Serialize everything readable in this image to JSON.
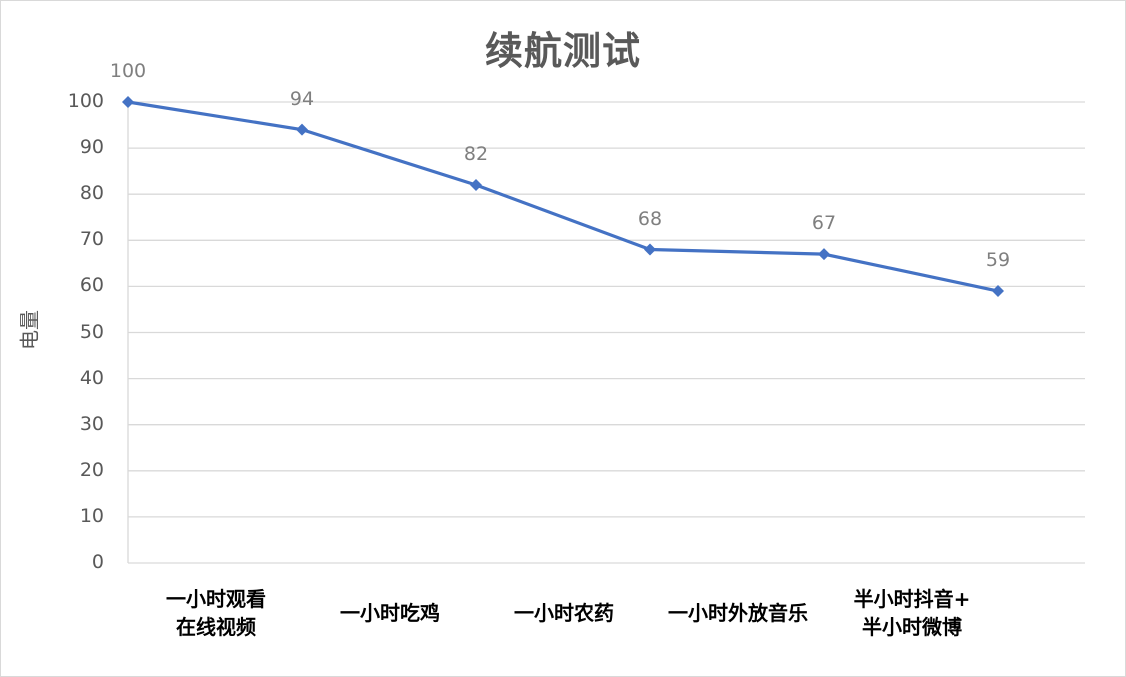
{
  "chart_data": {
    "type": "line",
    "title": "续航测试",
    "xlabel": "",
    "ylabel": "电量",
    "ylim": [
      0,
      100
    ],
    "yticks": [
      0,
      10,
      20,
      30,
      40,
      50,
      60,
      70,
      80,
      90,
      100
    ],
    "grid": true,
    "legend": "none",
    "categories": [
      "一小时观看\n在线视频",
      "一小时吃鸡",
      "一小时农药",
      "一小时外放音乐",
      "半小时抖音+\n半小时微博"
    ],
    "series": [
      {
        "name": "电量",
        "color": "#4472c4",
        "marker": "diamond",
        "x_positions": [
          "start",
          "一小时观看在线视频",
          "一小时吃鸡",
          "一小时农药",
          "一小时外放音乐",
          "半小时抖音+半小时微博"
        ],
        "values": [
          100,
          94,
          82,
          68,
          67,
          59
        ]
      }
    ],
    "data_labels": [
      "100",
      "94",
      "82",
      "68",
      "67",
      "59"
    ]
  },
  "colors": {
    "line": "#4472c4",
    "grid": "#d9d9d9",
    "axis_text": "#595959",
    "label_text": "#7f7f7f"
  }
}
